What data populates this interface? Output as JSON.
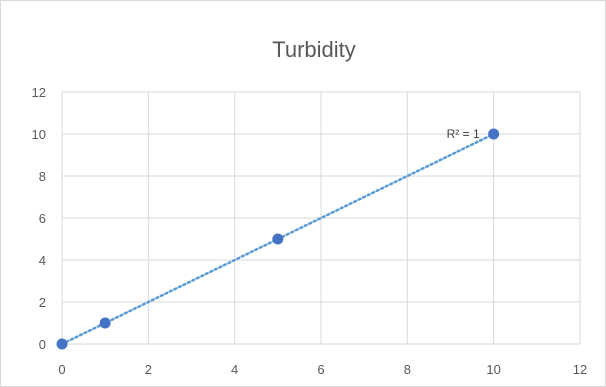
{
  "chart_data": {
    "type": "scatter",
    "title": "Turbidity",
    "xlabel": "",
    "ylabel": "",
    "xlim": [
      0,
      12
    ],
    "ylim": [
      0,
      12
    ],
    "x_ticks": [
      "0",
      "2",
      "4",
      "6",
      "8",
      "10",
      "12"
    ],
    "y_ticks": [
      "0",
      "2",
      "4",
      "6",
      "8",
      "10",
      "12"
    ],
    "grid": true,
    "legend": "none",
    "series": [
      {
        "points": [
          {
            "x": 0,
            "y": 0
          },
          {
            "x": 1,
            "y": 1
          },
          {
            "x": 5,
            "y": 5
          },
          {
            "x": 10,
            "y": 10
          }
        ],
        "color": "#4472c4"
      }
    ],
    "trendline": {
      "type": "linear",
      "style": "dotted",
      "color": "#5b9bd5",
      "from": {
        "x": 0,
        "y": 0
      },
      "to": {
        "x": 10,
        "y": 10
      },
      "r_squared_label": "R² = 1"
    }
  }
}
